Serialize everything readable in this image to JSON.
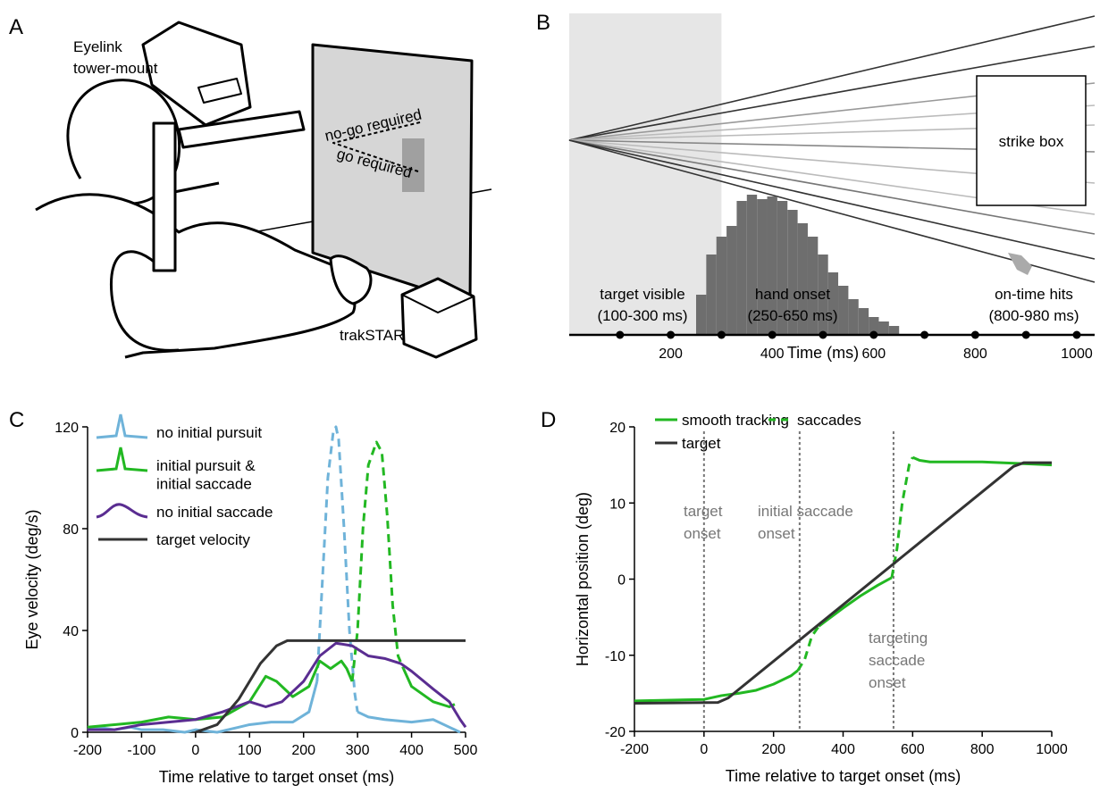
{
  "illustration": {
    "label": "A",
    "eyelink": [
      "Eyelink",
      "tower-mount"
    ],
    "nogo": "no-go required",
    "go": "go required",
    "tracker": "trakSTAR"
  },
  "chart_data": [
    {
      "type": "histogram",
      "label": "B",
      "xlabel": "Time (ms)",
      "xlim": [
        0,
        1000
      ],
      "xticks": [
        200,
        400,
        600,
        800,
        1000
      ],
      "xticks_minor": [
        100,
        200,
        300,
        400,
        500,
        600,
        700,
        800,
        900,
        1000
      ],
      "ylim": [
        0,
        160
      ],
      "shade": [
        0,
        300
      ],
      "color": "#6e6e6e",
      "bins": [
        250,
        270,
        290,
        310,
        330,
        350,
        370,
        390,
        410,
        430,
        450,
        470,
        490,
        510,
        530,
        550,
        570,
        590,
        610,
        630,
        650
      ],
      "values": [
        45,
        90,
        110,
        122,
        150,
        157,
        152,
        155,
        150,
        140,
        125,
        110,
        90,
        70,
        55,
        40,
        30,
        20,
        15,
        10
      ],
      "box_label": "strike box",
      "annotations": [
        [
          "target visible",
          "(100-300 ms)"
        ],
        [
          "hand onset",
          "(250-650 ms)"
        ],
        [
          "on-time hits",
          "(800-980 ms)"
        ]
      ]
    },
    {
      "type": "line",
      "label": "C",
      "xlabel": "Time relative to target onset (ms)",
      "ylabel": "Eye velocity (deg/s)",
      "xlim": [
        -200,
        500
      ],
      "xticks": [
        -200,
        -100,
        0,
        100,
        200,
        300,
        400,
        500
      ],
      "ylim": [
        0,
        120
      ],
      "yticks": [
        0,
        40,
        80,
        120
      ],
      "series": [
        {
          "name": "no initial pursuit",
          "color": "#6fb3d9",
          "dashed_x": [
            [
              228,
              300
            ]
          ],
          "x": [
            -200,
            -180,
            -150,
            -120,
            -100,
            -60,
            -20,
            0,
            40,
            80,
            100,
            140,
            180,
            210,
            225,
            235,
            245,
            255,
            260,
            265,
            275,
            285,
            295,
            300,
            320,
            350,
            400,
            440,
            470,
            490
          ],
          "values": [
            1,
            2,
            1,
            2,
            1,
            1,
            0,
            1,
            0,
            2,
            3,
            4,
            4,
            8,
            20,
            60,
            100,
            118,
            120,
            115,
            80,
            40,
            15,
            8,
            6,
            5,
            4,
            5,
            2,
            0
          ]
        },
        {
          "name": "initial pursuit &\ninitial saccade",
          "color": "#22b822",
          "dashed_x": [
            [
              290,
              385
            ]
          ],
          "x": [
            -200,
            -150,
            -100,
            -50,
            0,
            50,
            100,
            130,
            150,
            180,
            210,
            230,
            250,
            270,
            280,
            290,
            300,
            310,
            320,
            335,
            345,
            355,
            365,
            375,
            385,
            400,
            440,
            470,
            480
          ],
          "values": [
            2,
            3,
            4,
            6,
            5,
            6,
            12,
            22,
            20,
            14,
            18,
            28,
            25,
            28,
            25,
            20,
            40,
            80,
            105,
            114,
            110,
            85,
            50,
            30,
            25,
            18,
            12,
            10,
            11
          ]
        },
        {
          "name": "no initial saccade",
          "color": "#5a2d91",
          "dashed_x": [],
          "x": [
            -200,
            -150,
            -100,
            0,
            50,
            100,
            130,
            160,
            200,
            230,
            260,
            290,
            320,
            350,
            380,
            400,
            440,
            470,
            490,
            500
          ],
          "values": [
            1,
            1,
            3,
            5,
            8,
            12,
            10,
            12,
            20,
            30,
            35,
            34,
            30,
            29,
            27,
            24,
            17,
            12,
            5,
            2
          ]
        },
        {
          "name": "target velocity",
          "color": "#333333",
          "dashed_x": [],
          "x": [
            0,
            40,
            80,
            120,
            150,
            170,
            500
          ],
          "values": [
            0,
            3,
            13,
            27,
            34,
            36,
            36
          ]
        }
      ]
    },
    {
      "type": "line",
      "label": "D",
      "xlabel": "Time relative to target onset (ms)",
      "ylabel": "Horizontal position (deg)",
      "xlim": [
        -200,
        1000
      ],
      "xticks": [
        -200,
        0,
        200,
        400,
        600,
        800,
        1000
      ],
      "ylim": [
        -20,
        20
      ],
      "yticks": [
        20,
        10,
        0,
        -10,
        -20
      ],
      "vlines": [
        0,
        275,
        545
      ],
      "annotations": [
        [
          "target",
          "onset"
        ],
        [
          "initial saccade",
          "onset"
        ],
        [
          "targeting",
          "saccade",
          "onset"
        ]
      ],
      "series": [
        {
          "name": "smooth tracking",
          "dashed_name": "saccades",
          "color": "#22b822",
          "dashed_x": [
            [
              270,
              330
            ],
            [
              540,
              600
            ]
          ],
          "x": [
            -200,
            0,
            50,
            100,
            150,
            200,
            250,
            270,
            290,
            310,
            330,
            350,
            400,
            450,
            500,
            540,
            555,
            570,
            590,
            600,
            620,
            650,
            800,
            1000
          ],
          "values": [
            -16,
            -15.8,
            -15.3,
            -15,
            -14.6,
            -13.8,
            -12.7,
            -12,
            -10.5,
            -7.5,
            -6.2,
            -5.5,
            -3.8,
            -2.2,
            -0.8,
            0.2,
            4,
            10,
            15,
            16,
            15.6,
            15.4,
            15.4,
            15
          ]
        },
        {
          "name": "target",
          "color": "#333333",
          "dashed_x": [],
          "x": [
            -200,
            40,
            70,
            890,
            920,
            1000
          ],
          "values": [
            -16.3,
            -16.2,
            -15.6,
            14.8,
            15.3,
            15.3
          ]
        }
      ]
    }
  ]
}
